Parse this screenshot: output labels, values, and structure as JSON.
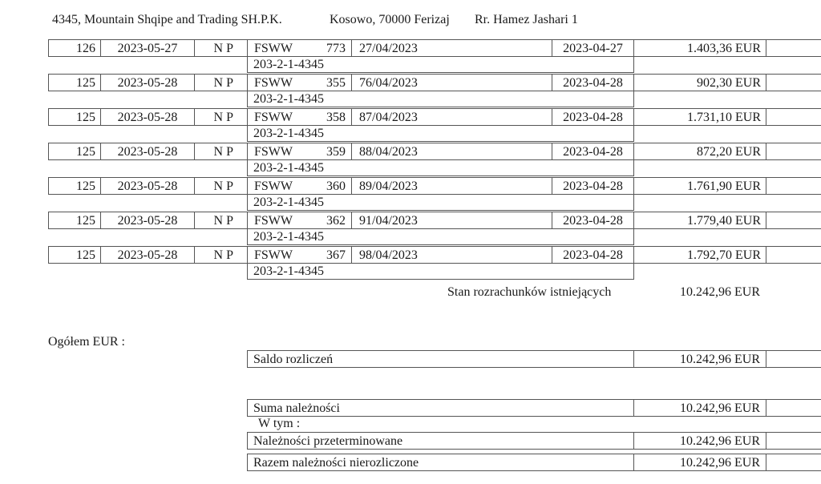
{
  "header": {
    "company": "4345, Mountain Shqipe and Trading SH.P.K.",
    "city": "Kosowo, 70000  Ferizaj",
    "street": "Rr. Hamez Jashari 1"
  },
  "rows": [
    {
      "no": "126",
      "date": "2023-05-27",
      "type": "N P",
      "doc": "FSWW",
      "doc_no": "773",
      "inv": "27/04/2023",
      "due": "2023-04-27",
      "amount": "1.403,36 EUR",
      "account": "203-2-1-4345"
    },
    {
      "no": "125",
      "date": "2023-05-28",
      "type": "N P",
      "doc": "FSWW",
      "doc_no": "355",
      "inv": "76/04/2023",
      "due": "2023-04-28",
      "amount": "902,30 EUR",
      "account": "203-2-1-4345"
    },
    {
      "no": "125",
      "date": "2023-05-28",
      "type": "N P",
      "doc": "FSWW",
      "doc_no": "358",
      "inv": "87/04/2023",
      "due": "2023-04-28",
      "amount": "1.731,10 EUR",
      "account": "203-2-1-4345"
    },
    {
      "no": "125",
      "date": "2023-05-28",
      "type": "N P",
      "doc": "FSWW",
      "doc_no": "359",
      "inv": "88/04/2023",
      "due": "2023-04-28",
      "amount": "872,20 EUR",
      "account": "203-2-1-4345"
    },
    {
      "no": "125",
      "date": "2023-05-28",
      "type": "N P",
      "doc": "FSWW",
      "doc_no": "360",
      "inv": "89/04/2023",
      "due": "2023-04-28",
      "amount": "1.761,90 EUR",
      "account": "203-2-1-4345"
    },
    {
      "no": "125",
      "date": "2023-05-28",
      "type": "N P",
      "doc": "FSWW",
      "doc_no": "362",
      "inv": "91/04/2023",
      "due": "2023-04-28",
      "amount": "1.779,40 EUR",
      "account": "203-2-1-4345"
    },
    {
      "no": "125",
      "date": "2023-05-28",
      "type": "N P",
      "doc": "FSWW",
      "doc_no": "367",
      "inv": "98/04/2023",
      "due": "2023-04-28",
      "amount": "1.792,70 EUR",
      "account": "203-2-1-4345"
    }
  ],
  "stan": {
    "label": "Stan rozrachunków istniejących",
    "value": "10.242,96 EUR"
  },
  "ogolem_label": "Ogółem EUR :",
  "saldo": {
    "label": "Saldo rozliczeń",
    "value": "10.242,96 EUR"
  },
  "suma": {
    "label": "Suma należności",
    "value": "10.242,96 EUR"
  },
  "w_tym": "W tym :",
  "przeterminowane": {
    "label": "Należności przeterminowane",
    "value": "10.242,96 EUR"
  },
  "razem": {
    "label": "Razem należności nierozliczone",
    "value": "10.242,96 EUR"
  }
}
